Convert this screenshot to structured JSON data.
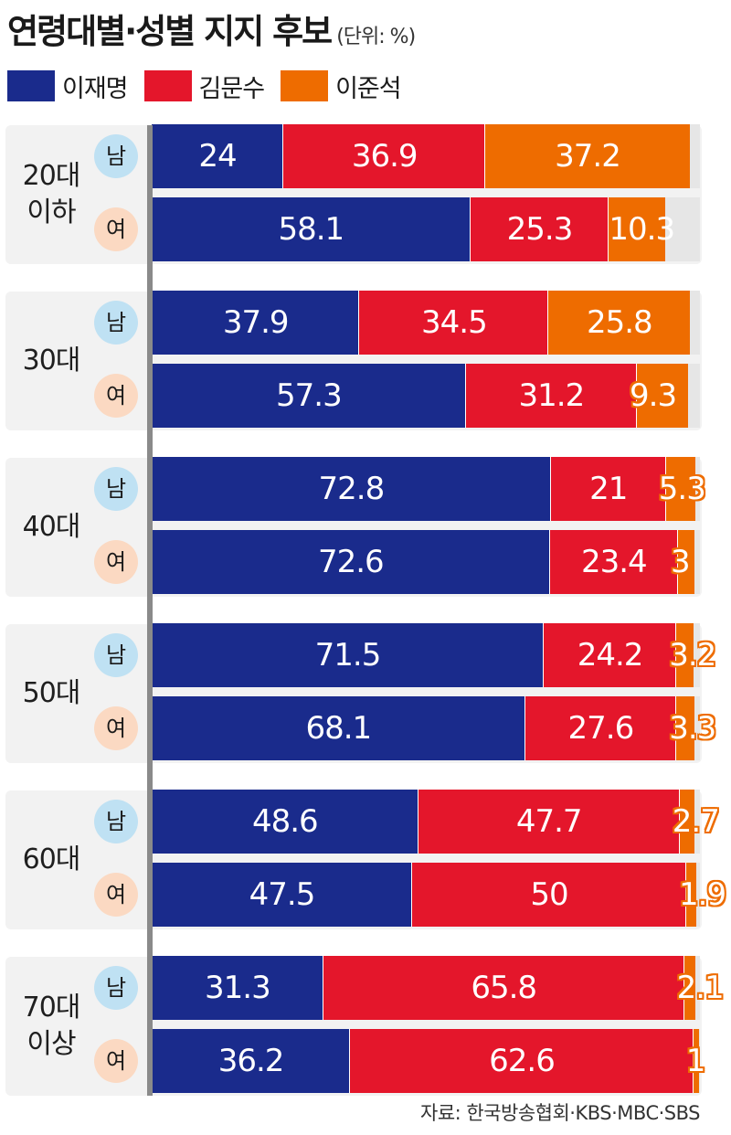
{
  "title": "연령대별·성별 지지 후보",
  "unit": "(단위: %)",
  "source": "자료: 한국방송협회·KBS·MBC·SBS",
  "legend": [
    {
      "name": "이재명",
      "color": "#1a2b8c"
    },
    {
      "name": "김문수",
      "color": "#e4162b"
    },
    {
      "name": "이준석",
      "color": "#ee6c00"
    }
  ],
  "chart_data": {
    "type": "bar",
    "stacked": true,
    "orientation": "horizontal",
    "unit": "%",
    "xlim": [
      0,
      100
    ],
    "series_names": [
      "이재명",
      "김문수",
      "이준석"
    ],
    "groups": [
      {
        "label": "20대\n이하",
        "rows": [
          {
            "sex": "남",
            "values": [
              24,
              36.9,
              37.2
            ],
            "labels": [
              "24",
              "36.9",
              "37.2"
            ]
          },
          {
            "sex": "여",
            "values": [
              58.1,
              25.3,
              10.3
            ],
            "labels": [
              "58.1",
              "25.3",
              "10.3"
            ]
          }
        ]
      },
      {
        "label": "30대",
        "rows": [
          {
            "sex": "남",
            "values": [
              37.9,
              34.5,
              25.8
            ],
            "labels": [
              "37.9",
              "34.5",
              "25.8"
            ]
          },
          {
            "sex": "여",
            "values": [
              57.3,
              31.2,
              9.3
            ],
            "labels": [
              "57.3",
              "31.2",
              "9.3"
            ]
          }
        ]
      },
      {
        "label": "40대",
        "rows": [
          {
            "sex": "남",
            "values": [
              72.8,
              21,
              5.3
            ],
            "labels": [
              "72.8",
              "21",
              "5.3"
            ]
          },
          {
            "sex": "여",
            "values": [
              72.6,
              23.4,
              3
            ],
            "labels": [
              "72.6",
              "23.4",
              "3"
            ]
          }
        ]
      },
      {
        "label": "50대",
        "rows": [
          {
            "sex": "남",
            "values": [
              71.5,
              24.2,
              3.2
            ],
            "labels": [
              "71.5",
              "24.2",
              "3.2"
            ]
          },
          {
            "sex": "여",
            "values": [
              68.1,
              27.6,
              3.3
            ],
            "labels": [
              "68.1",
              "27.6",
              "3.3"
            ]
          }
        ]
      },
      {
        "label": "60대",
        "rows": [
          {
            "sex": "남",
            "values": [
              48.6,
              47.7,
              2.7
            ],
            "labels": [
              "48.6",
              "47.7",
              "2.7"
            ]
          },
          {
            "sex": "여",
            "values": [
              47.5,
              50,
              1.9
            ],
            "labels": [
              "47.5",
              "50",
              "1.9"
            ]
          }
        ]
      },
      {
        "label": "70대\n이상",
        "rows": [
          {
            "sex": "남",
            "values": [
              31.3,
              65.8,
              2.1
            ],
            "labels": [
              "31.3",
              "65.8",
              "2.1"
            ]
          },
          {
            "sex": "여",
            "values": [
              36.2,
              62.6,
              1
            ],
            "labels": [
              "36.2",
              "62.6",
              "1"
            ]
          }
        ]
      }
    ]
  }
}
